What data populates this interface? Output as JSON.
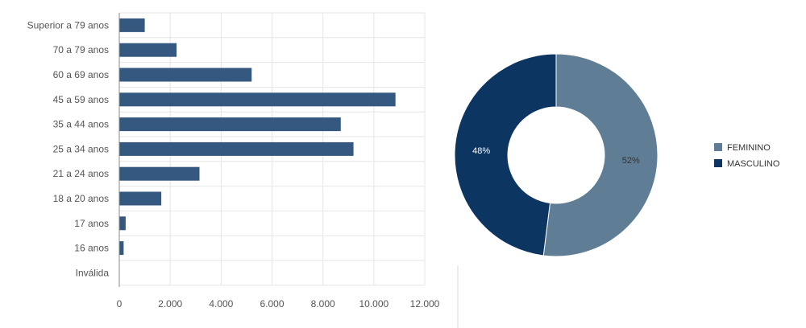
{
  "chart_data": [
    {
      "type": "bar",
      "orientation": "horizontal",
      "categories": [
        "Superior a 79 anos",
        "70 a 79 anos",
        "60 a 69 anos",
        "45 a 59 anos",
        "35 a 44 anos",
        "25 a 34 anos",
        "21 a 24 anos",
        "18 a 20 anos",
        "17 anos",
        "16 anos",
        "Inválida"
      ],
      "values": [
        1000,
        2250,
        5200,
        10850,
        8700,
        9200,
        3150,
        1650,
        250,
        170,
        0
      ],
      "xlim": [
        0,
        12000
      ],
      "xticks": [
        0,
        2000,
        4000,
        6000,
        8000,
        10000,
        12000
      ],
      "xtick_labels": [
        "0",
        "2.000",
        "4.000",
        "6.000",
        "8.000",
        "10.000",
        "12.000"
      ],
      "color": "#34587f",
      "grid": true
    },
    {
      "type": "pie",
      "style": "donut",
      "slices": [
        {
          "label": "FEMININO",
          "value": 52,
          "text": "52%",
          "color": "#5f7d95",
          "text_color": "#333333"
        },
        {
          "label": "MASCULINO",
          "value": 48,
          "text": "48%",
          "color": "#0d3561",
          "text_color": "#ffffff"
        }
      ],
      "legend": "right"
    }
  ]
}
